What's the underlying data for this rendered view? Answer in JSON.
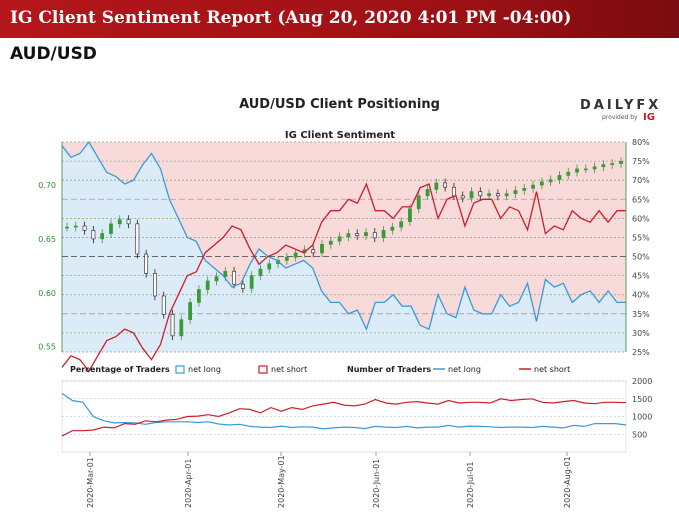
{
  "header": {
    "title": "IG Client Sentiment Report (Aug 20, 2020 4:01 PM -04:00)",
    "pair": "AUD/USD"
  },
  "chart": {
    "title": "AUD/USD Client Positioning",
    "subtitle": "IG Client Sentiment",
    "logo_text": "DAILYFX",
    "logo_sub": "provided by",
    "logo_ig": "IG"
  },
  "legend": {
    "pct_title": "Percentage of Traders",
    "net_long": "net long",
    "net_short": "net short",
    "num_title": "Number of Traders",
    "num_long": "net long",
    "num_short": "net short"
  },
  "colors": {
    "banner": "#b5161b",
    "long": "#3a9ad9",
    "short": "#cc1e2b",
    "long_bg": "#dcebf8",
    "short_bg": "#f9dada",
    "price_up": "#3a9a3a",
    "price_down": "#222222",
    "price_axis": "#2f8f2f"
  },
  "chart_data": {
    "type": "line",
    "x_ticks": [
      "2020-Mar-01",
      "2020-Apr-01",
      "2020-May-01",
      "2020-Jun-01",
      "2020-Jul-01",
      "2020-Aug-01"
    ],
    "price_axis": {
      "ticks": [
        "0.70",
        "0.65",
        "0.60",
        "0.55"
      ],
      "ylim": [
        0.545,
        0.74
      ]
    },
    "pct_axis": {
      "ticks": [
        "80%",
        "75%",
        "70%",
        "65%",
        "60%",
        "55%",
        "50%",
        "45%",
        "40%",
        "35%",
        "30%",
        "25%"
      ],
      "ylim": [
        25,
        80
      ]
    },
    "count_axis": {
      "ticks": [
        "2000",
        "1500",
        "1000",
        "500"
      ],
      "ylim": [
        0,
        2000
      ]
    },
    "price_close": [
      0.661,
      0.662,
      0.658,
      0.65,
      0.655,
      0.664,
      0.668,
      0.664,
      0.636,
      0.618,
      0.597,
      0.58,
      0.56,
      0.575,
      0.591,
      0.603,
      0.611,
      0.615,
      0.62,
      0.608,
      0.604,
      0.616,
      0.622,
      0.627,
      0.63,
      0.633,
      0.637,
      0.64,
      0.637,
      0.645,
      0.648,
      0.652,
      0.655,
      0.653,
      0.656,
      0.651,
      0.658,
      0.661,
      0.666,
      0.678,
      0.69,
      0.696,
      0.702,
      0.698,
      0.69,
      0.688,
      0.694,
      0.69,
      0.692,
      0.69,
      0.692,
      0.695,
      0.697,
      0.7,
      0.703,
      0.705,
      0.709,
      0.712,
      0.715,
      0.715,
      0.717,
      0.719,
      0.72,
      0.722
    ],
    "series": [
      {
        "name": "net long",
        "values": [
          79,
          76,
          77,
          80,
          76,
          72,
          71,
          69,
          70,
          74,
          77,
          73,
          65,
          60,
          55,
          54,
          49,
          47,
          45,
          42,
          43,
          48,
          52,
          50,
          49,
          47,
          48,
          49,
          47,
          41,
          38,
          38,
          35,
          36,
          31,
          38,
          38,
          40,
          37,
          37,
          32,
          31,
          40,
          35,
          34,
          42,
          36,
          35,
          35,
          40,
          37,
          38,
          43,
          33,
          44,
          42,
          43,
          38,
          40,
          41,
          38,
          41,
          38,
          38
        ]
      },
      {
        "name": "net short",
        "values": [
          21,
          24,
          23,
          20,
          24,
          28,
          29,
          31,
          30,
          26,
          23,
          27,
          35,
          40,
          45,
          46,
          51,
          53,
          55,
          58,
          57,
          52,
          48,
          50,
          51,
          53,
          52,
          51,
          53,
          59,
          62,
          62,
          65,
          64,
          69,
          62,
          62,
          60,
          63,
          63,
          68,
          69,
          60,
          65,
          66,
          58,
          64,
          65,
          65,
          60,
          63,
          62,
          57,
          67,
          56,
          58,
          57,
          62,
          60,
          59,
          62,
          59,
          62,
          62
        ]
      },
      {
        "name": "net long count",
        "values": [
          1650,
          1450,
          1400,
          1000,
          880,
          820,
          830,
          820,
          780,
          830,
          850,
          850,
          850,
          830,
          850,
          790,
          760,
          780,
          720,
          700,
          690,
          730,
          690,
          710,
          700,
          650,
          680,
          700,
          690,
          660,
          720,
          700,
          690,
          720,
          680,
          700,
          700,
          750,
          700,
          730,
          720,
          710,
          690,
          700,
          700,
          690,
          720,
          700,
          680,
          750,
          720,
          800,
          800,
          800,
          760
        ]
      },
      {
        "name": "net short count",
        "values": [
          450,
          600,
          600,
          620,
          700,
          680,
          800,
          780,
          880,
          850,
          900,
          920,
          1000,
          1010,
          1050,
          1000,
          1100,
          1220,
          1200,
          1100,
          1250,
          1150,
          1250,
          1200,
          1300,
          1350,
          1400,
          1320,
          1300,
          1350,
          1480,
          1380,
          1350,
          1400,
          1420,
          1380,
          1350,
          1450,
          1380,
          1400,
          1400,
          1380,
          1500,
          1450,
          1480,
          1500,
          1400,
          1380,
          1420,
          1450,
          1380,
          1360,
          1400,
          1400,
          1390
        ]
      }
    ]
  }
}
